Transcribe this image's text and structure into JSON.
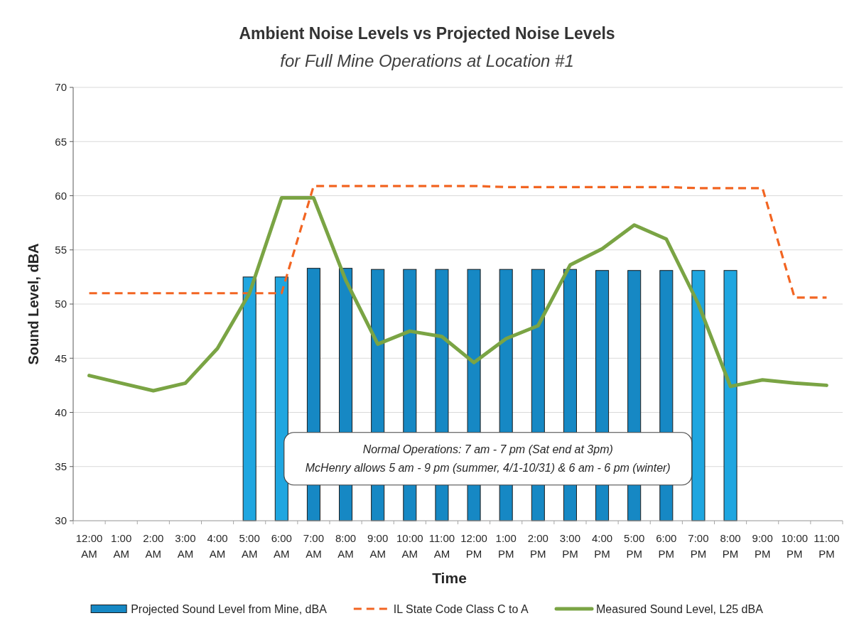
{
  "chart_data": {
    "type": "bar",
    "title": "Ambient Noise Levels vs Projected Noise Levels",
    "subtitle": "for Full Mine Operations at Location #1",
    "xlabel": "Time",
    "ylabel": "Sound Level, dBA",
    "categories": [
      "12:00 AM",
      "1:00 AM",
      "2:00 AM",
      "3:00 AM",
      "4:00 AM",
      "5:00 AM",
      "6:00 AM",
      "7:00 AM",
      "8:00 AM",
      "9:00 AM",
      "10:00 AM",
      "11:00 AM",
      "12:00 PM",
      "1:00 PM",
      "2:00 PM",
      "3:00 PM",
      "4:00 PM",
      "5:00 PM",
      "6:00 PM",
      "7:00 PM",
      "8:00 PM",
      "9:00 PM",
      "10:00 PM",
      "11:00 PM"
    ],
    "series": [
      {
        "name": "Projected Sound Level from Mine, dBA",
        "color": "#1688c4",
        "colors": [
          null,
          null,
          null,
          null,
          null,
          "#1fa6e0",
          "#1fa6e0",
          "#1688c4",
          "#1688c4",
          "#1688c4",
          "#1688c4",
          "#1688c4",
          "#1688c4",
          "#1688c4",
          "#1688c4",
          "#1688c4",
          "#1688c4",
          "#1688c4",
          "#1688c4",
          "#1fa6e0",
          "#1fa6e0",
          null,
          null,
          null
        ],
        "values": [
          null,
          null,
          null,
          null,
          null,
          52.5,
          52.5,
          53.3,
          53.3,
          53.2,
          53.2,
          53.2,
          53.2,
          53.2,
          53.2,
          53.2,
          53.1,
          53.1,
          53.1,
          53.1,
          53.1,
          null,
          null,
          null
        ]
      },
      {
        "name": "IL State Code Class C to A",
        "type": "line",
        "color": "#f26522",
        "line_style": "dashed",
        "values": [
          51,
          51,
          51,
          51,
          51,
          51,
          51,
          60.9,
          60.9,
          60.9,
          60.9,
          60.9,
          60.9,
          60.8,
          60.8,
          60.8,
          60.8,
          60.8,
          60.8,
          60.7,
          60.7,
          60.7,
          50.6,
          50.6
        ]
      },
      {
        "name": "Measured Sound Level, L25 dBA",
        "type": "line",
        "color": "#7aa444",
        "values": [
          43.4,
          42.7,
          42.0,
          42.7,
          45.9,
          51.0,
          59.8,
          59.8,
          52.2,
          46.3,
          47.5,
          47.0,
          44.6,
          46.8,
          48.0,
          53.6,
          55.1,
          57.3,
          56.0,
          50.0,
          42.4,
          43.0,
          42.7,
          42.5
        ]
      }
    ],
    "ylim": [
      30,
      70
    ],
    "yticks": [
      30,
      35,
      40,
      45,
      50,
      55,
      60,
      65,
      70
    ],
    "grid": "y",
    "legend": "bottom",
    "annotations": [
      "Normal Operations: 7 am - 7 pm (Sat end at 3pm)",
      "McHenry allows 5 am - 9 pm (summer, 4/1-10/31) & 6 am - 6 pm (winter)"
    ]
  }
}
